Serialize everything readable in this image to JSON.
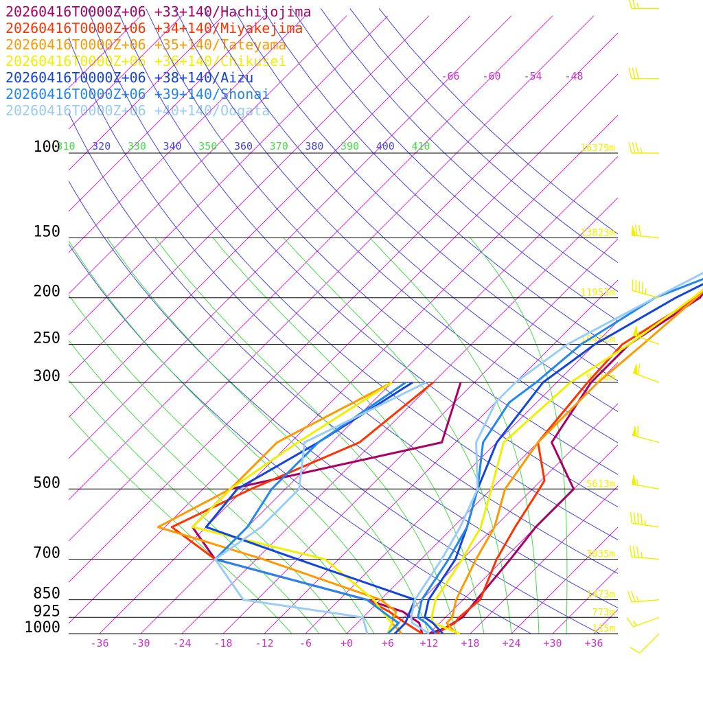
{
  "colors": {
    "isotherm": "#cc33cc",
    "theta": "#4444dd",
    "theta_e": "#44dd44",
    "isobar": "#000000",
    "height": "#f0f000",
    "wind": "#f0f000"
  },
  "chart_data": {
    "type": "line",
    "title": "",
    "xlabel": "",
    "ylabel": "",
    "xlim": [
      -40,
      40
    ],
    "ylim": [
      1000,
      100
    ],
    "y_scale": "log",
    "pressure_levels": [
      "100",
      "150",
      "200",
      "250",
      "300",
      "500",
      "700",
      "850",
      "925",
      "1000"
    ],
    "temperature_ticks": [
      "-36",
      "-30",
      "-24",
      "-18",
      "-12",
      "-6",
      "+0",
      "+6",
      "+12",
      "+18",
      "+24",
      "+30",
      "+36"
    ],
    "upper_temperature_labels": [
      "-66",
      "-60",
      "-54",
      "-48"
    ],
    "theta_labels": [
      "310",
      "320",
      "330",
      "340",
      "350",
      "360",
      "370",
      "380",
      "390",
      "400",
      "410"
    ],
    "height_labels": [
      {
        "p": 100,
        "label": "16379m"
      },
      {
        "p": 150,
        "label": "13823m"
      },
      {
        "p": 200,
        "label": "11953m"
      },
      {
        "p": 250,
        "label": "10412m"
      },
      {
        "p": 300,
        "label": "9226m"
      },
      {
        "p": 500,
        "label": "5613m"
      },
      {
        "p": 700,
        "label": "3035m"
      },
      {
        "p": 850,
        "label": "1473m"
      },
      {
        "p": 925,
        "label": "773m"
      },
      {
        "p": 1000,
        "label": "115m"
      }
    ],
    "series": [
      {
        "name": "20260416T0000Z+06 +33+140/Hachijojima",
        "color": "#aa0066",
        "temperature": [
          [
            1000,
            12
          ],
          [
            975,
            13.5
          ],
          [
            925,
            14.5
          ],
          [
            850,
            14
          ],
          [
            700,
            13
          ],
          [
            600,
            12
          ],
          [
            500,
            12
          ],
          [
            400,
            2
          ],
          [
            300,
            -1
          ],
          [
            250,
            -1
          ],
          [
            200,
            2.5
          ],
          [
            170,
            1.5
          ],
          [
            150,
            0
          ],
          [
            130,
            -4
          ],
          [
            100,
            -3
          ],
          [
            80,
            7
          ],
          [
            70,
            14
          ],
          [
            60,
            20
          ],
          [
            50,
            29
          ]
        ],
        "dewpoint": [
          [
            1000,
            11
          ],
          [
            950,
            9
          ],
          [
            900,
            5
          ],
          [
            850,
            -2
          ],
          [
            700,
            -30
          ],
          [
            600,
            -38
          ],
          [
            500,
            -38
          ],
          [
            400,
            -14
          ],
          [
            300,
            -20
          ]
        ]
      },
      {
        "name": "20260416T0000Z+06 +34+140/Miyakejima",
        "color": "#ff3300",
        "temperature": [
          [
            1000,
            13
          ],
          [
            950,
            14.2
          ],
          [
            925,
            14
          ],
          [
            850,
            14.5
          ],
          [
            700,
            11
          ],
          [
            600,
            9
          ],
          [
            500,
            7
          ],
          [
            480,
            6.5
          ],
          [
            400,
            0
          ],
          [
            300,
            -1.5
          ],
          [
            250,
            -2
          ],
          [
            200,
            2
          ],
          [
            150,
            2
          ],
          [
            130,
            -3
          ],
          [
            100,
            1
          ],
          [
            80,
            10
          ],
          [
            60,
            19
          ],
          [
            50,
            28
          ]
        ],
        "dewpoint": [
          [
            1000,
            11
          ],
          [
            950,
            7
          ],
          [
            900,
            3
          ],
          [
            850,
            -2
          ],
          [
            700,
            -30
          ],
          [
            600,
            -41
          ],
          [
            500,
            -35
          ],
          [
            400,
            -26
          ],
          [
            300,
            -24
          ]
        ]
      },
      {
        "name": "20260416T0000Z+06 +35+140/Tateyama",
        "color": "#ff9900",
        "temperature": [
          [
            1000,
            16
          ],
          [
            950,
            13
          ],
          [
            925,
            13
          ],
          [
            850,
            11
          ],
          [
            700,
            8
          ],
          [
            600,
            6
          ],
          [
            500,
            2
          ],
          [
            400,
            0
          ],
          [
            300,
            0
          ],
          [
            250,
            1
          ],
          [
            200,
            2
          ],
          [
            150,
            3
          ],
          [
            140,
            1.5
          ],
          [
            120,
            3
          ],
          [
            100,
            5
          ],
          [
            80,
            12
          ],
          [
            60,
            20
          ],
          [
            50,
            28
          ]
        ],
        "dewpoint": [
          [
            1000,
            8
          ],
          [
            950,
            5
          ],
          [
            900,
            4
          ],
          [
            850,
            0
          ],
          [
            700,
            -23
          ],
          [
            600,
            -43
          ],
          [
            500,
            -38
          ],
          [
            400,
            -38
          ],
          [
            300,
            -30
          ]
        ]
      },
      {
        "name": "20260416T0000Z+06 +36+140/Chikusei",
        "color": "#f0f000",
        "temperature": [
          [
            1000,
            16.5
          ],
          [
            950,
            11
          ],
          [
            925,
            10
          ],
          [
            850,
            8
          ],
          [
            700,
            6
          ],
          [
            600,
            4
          ],
          [
            500,
            0
          ],
          [
            400,
            -5
          ],
          [
            300,
            -4
          ],
          [
            250,
            -1
          ],
          [
            200,
            1.5
          ],
          [
            150,
            4
          ],
          [
            130,
            4.5
          ],
          [
            100,
            6
          ],
          [
            80,
            14
          ],
          [
            60,
            18
          ],
          [
            50,
            28
          ]
        ],
        "dewpoint": [
          [
            1000,
            6
          ],
          [
            950,
            5
          ],
          [
            900,
            2
          ],
          [
            850,
            -1
          ],
          [
            700,
            -14
          ],
          [
            600,
            -38
          ],
          [
            500,
            -38
          ],
          [
            400,
            -35
          ],
          [
            300,
            -30
          ]
        ]
      },
      {
        "name": "20260416T0000Z+06 +38+140/Aizu",
        "color": "#1144dd",
        "temperature": [
          [
            1000,
            14
          ],
          [
            950,
            11
          ],
          [
            925,
            9
          ],
          [
            850,
            7
          ],
          [
            700,
            5
          ],
          [
            600,
            2
          ],
          [
            500,
            -2
          ],
          [
            400,
            -6
          ],
          [
            300,
            -8
          ],
          [
            250,
            -6
          ],
          [
            200,
            -1
          ],
          [
            170,
            4
          ],
          [
            150,
            5.5
          ],
          [
            120,
            7
          ],
          [
            100,
            8
          ],
          [
            80,
            13
          ],
          [
            70,
            18
          ],
          [
            60,
            22
          ],
          [
            50,
            30
          ]
        ],
        "dewpoint": [
          [
            1000,
            7
          ],
          [
            950,
            7
          ],
          [
            925,
            6.5
          ],
          [
            850,
            5
          ],
          [
            700,
            -18
          ],
          [
            600,
            -36
          ],
          [
            500,
            -37
          ],
          [
            400,
            -32
          ],
          [
            300,
            -27
          ]
        ]
      },
      {
        "name": "20260416T0000Z+06 +39+140/Shonai",
        "color": "#2288ee",
        "temperature": [
          [
            1000,
            13
          ],
          [
            950,
            10
          ],
          [
            925,
            8
          ],
          [
            850,
            6
          ],
          [
            700,
            4
          ],
          [
            600,
            2
          ],
          [
            500,
            -2
          ],
          [
            400,
            -8
          ],
          [
            330,
            -10
          ],
          [
            300,
            -9
          ],
          [
            250,
            -8
          ],
          [
            200,
            -4
          ],
          [
            180,
            1
          ],
          [
            150,
            5
          ],
          [
            120,
            8
          ],
          [
            100,
            10
          ],
          [
            80,
            12
          ],
          [
            70,
            18
          ],
          [
            60,
            22
          ],
          [
            50,
            31
          ]
        ],
        "dewpoint": [
          [
            1000,
            6
          ],
          [
            950,
            6
          ],
          [
            925,
            4
          ],
          [
            850,
            -2
          ],
          [
            700,
            -30
          ],
          [
            600,
            -30
          ],
          [
            500,
            -32
          ],
          [
            400,
            -32
          ],
          [
            300,
            -28
          ]
        ]
      },
      {
        "name": "20260416T0000Z+06 +40+140/Oogata",
        "color": "#99ccf7",
        "temperature": [
          [
            1000,
            12
          ],
          [
            950,
            8
          ],
          [
            925,
            7
          ],
          [
            850,
            5
          ],
          [
            700,
            3
          ],
          [
            600,
            1
          ],
          [
            500,
            -2
          ],
          [
            400,
            -9
          ],
          [
            330,
            -12
          ],
          [
            300,
            -12
          ],
          [
            250,
            -10
          ],
          [
            200,
            -4
          ],
          [
            180,
            -1
          ],
          [
            150,
            4
          ],
          [
            120,
            8
          ],
          [
            100,
            11
          ],
          [
            80,
            13
          ],
          [
            60,
            20
          ],
          [
            50,
            31
          ]
        ],
        "dewpoint": [
          [
            1000,
            3
          ],
          [
            950,
            1
          ],
          [
            925,
            0
          ],
          [
            850,
            -20
          ],
          [
            700,
            -30
          ],
          [
            600,
            -28
          ],
          [
            500,
            -28
          ],
          [
            400,
            -34
          ],
          [
            300,
            -25
          ]
        ]
      }
    ],
    "wind_barbs": [
      {
        "p": 1000,
        "dir": 225,
        "speed": 10
      },
      {
        "p": 925,
        "dir": 250,
        "speed": 15
      },
      {
        "p": 850,
        "dir": 265,
        "speed": 25
      },
      {
        "p": 700,
        "dir": 275,
        "speed": 35
      },
      {
        "p": 600,
        "dir": 278,
        "speed": 45
      },
      {
        "p": 500,
        "dir": 280,
        "speed": 55
      },
      {
        "p": 400,
        "dir": 285,
        "speed": 60
      },
      {
        "p": 300,
        "dir": 290,
        "speed": 60
      },
      {
        "p": 250,
        "dir": 290,
        "speed": 55
      },
      {
        "p": 200,
        "dir": 285,
        "speed": 45
      },
      {
        "p": 150,
        "dir": 275,
        "speed": 70
      },
      {
        "p": 100,
        "dir": 270,
        "speed": 35
      },
      {
        "p": 70,
        "dir": 270,
        "speed": 30
      },
      {
        "p": 50,
        "dir": 270,
        "speed": 25
      }
    ]
  }
}
